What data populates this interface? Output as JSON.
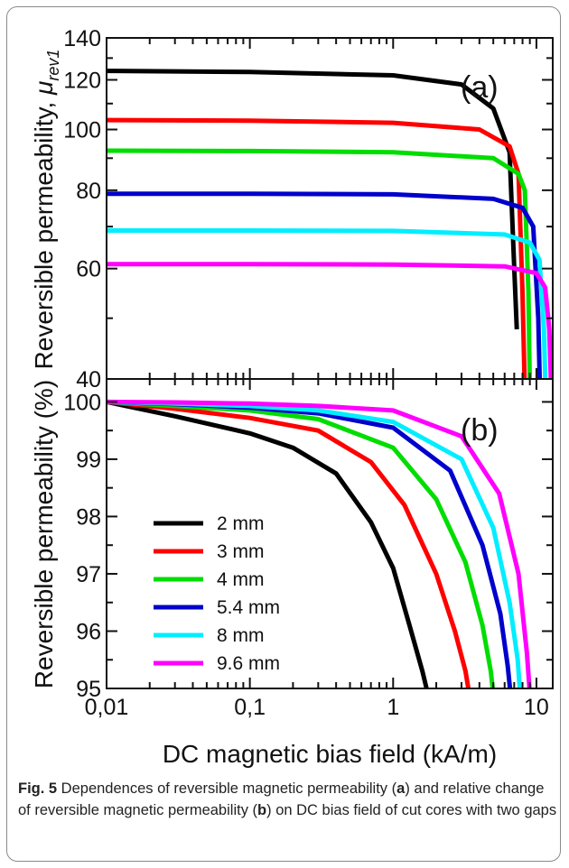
{
  "caption": {
    "label": "Fig. 5",
    "text_parts": [
      " Dependences of reversible magnetic permeability (",
      "a",
      ") and relative change of reversible magnetic permeability (",
      "b",
      ") on DC bias field of cut cores with two gaps"
    ]
  },
  "chart_data": [
    {
      "type": "line",
      "panel": "(a)",
      "ylabel_main": "Reversible permeability, ",
      "ylabel_symbol": "μ",
      "ylabel_sub": "rev1",
      "xscale": "log",
      "yscale": "log",
      "xlim": [
        0.01,
        13
      ],
      "ylim": [
        40,
        140
      ],
      "yticks": [
        "40",
        "60",
        "80",
        "100",
        "120",
        "140"
      ],
      "series": [
        {
          "name": "2 mm",
          "color": "#000000",
          "x": [
            0.01,
            0.1,
            1,
            3,
            5,
            6.5,
            7,
            7.3
          ],
          "y": [
            124,
            123.5,
            122,
            118,
            108,
            92,
            60,
            48
          ]
        },
        {
          "name": "3 mm",
          "color": "#ff0000",
          "x": [
            0.01,
            0.1,
            1,
            4,
            6.5,
            7.5,
            8,
            8.3
          ],
          "y": [
            103.5,
            103.3,
            102.5,
            100,
            94,
            85,
            55,
            38
          ]
        },
        {
          "name": "4 mm",
          "color": "#00dd00",
          "x": [
            0.01,
            0.1,
            1,
            5,
            7.5,
            8.3,
            8.8,
            9.0
          ],
          "y": [
            92.5,
            92.4,
            92,
            90,
            85,
            80,
            55,
            38
          ]
        },
        {
          "name": "5.4 mm",
          "color": "#0000cc",
          "x": [
            0.01,
            0.1,
            1,
            5,
            8,
            9.5,
            10.3,
            10.6
          ],
          "y": [
            79,
            79,
            78.8,
            77.5,
            75,
            70,
            50,
            38
          ]
        },
        {
          "name": "8 mm",
          "color": "#00eeff",
          "x": [
            0.01,
            0.1,
            1,
            6,
            9,
            10.5,
            11.3,
            11.6
          ],
          "y": [
            69,
            69,
            68.9,
            68,
            66,
            62,
            48,
            38
          ]
        },
        {
          "name": "9.6 mm",
          "color": "#ff00ff",
          "x": [
            0.01,
            0.1,
            1,
            6,
            10,
            11.5,
            12.3,
            12.7
          ],
          "y": [
            61,
            61,
            60.9,
            60.5,
            59,
            56,
            48,
            38
          ]
        }
      ]
    },
    {
      "type": "line",
      "panel": "(b)",
      "xlabel": "DC magnetic bias field (kA/m)",
      "ylabel": "Reversible permeability (%)",
      "xscale": "log",
      "xlim": [
        0.01,
        13
      ],
      "ylim": [
        95,
        100.4
      ],
      "xticks": [
        "0,01",
        "0,1",
        "1",
        "10"
      ],
      "yticks": [
        "95",
        "96",
        "97",
        "98",
        "99",
        "100"
      ],
      "legend_position": "lower-left",
      "series": [
        {
          "name": "2 mm",
          "color": "#000000",
          "x": [
            0.01,
            0.03,
            0.1,
            0.2,
            0.4,
            0.7,
            1.0,
            1.3,
            1.6,
            1.75
          ],
          "y": [
            100,
            99.75,
            99.45,
            99.2,
            98.75,
            97.9,
            97.1,
            96.1,
            95.3,
            94.9
          ]
        },
        {
          "name": "3 mm",
          "color": "#ff0000",
          "x": [
            0.01,
            0.03,
            0.1,
            0.3,
            0.7,
            1.2,
            2.0,
            2.7,
            3.2,
            3.4
          ],
          "y": [
            100,
            99.88,
            99.72,
            99.5,
            98.95,
            98.2,
            97.0,
            96.0,
            95.3,
            94.9
          ]
        },
        {
          "name": "4 mm",
          "color": "#00dd00",
          "x": [
            0.01,
            0.03,
            0.1,
            0.3,
            1.0,
            2.0,
            3.2,
            4.2,
            4.8,
            5.0
          ],
          "y": [
            100,
            99.93,
            99.85,
            99.7,
            99.2,
            98.3,
            97.2,
            96.1,
            95.3,
            94.9
          ]
        },
        {
          "name": "5.4 mm",
          "color": "#0000cc",
          "x": [
            0.01,
            0.03,
            0.1,
            0.3,
            1.0,
            2.5,
            4.2,
            5.6,
            6.3,
            6.6
          ],
          "y": [
            100,
            99.96,
            99.9,
            99.8,
            99.55,
            98.8,
            97.5,
            96.3,
            95.4,
            94.9
          ]
        },
        {
          "name": "8 mm",
          "color": "#00eeff",
          "x": [
            0.01,
            0.03,
            0.1,
            0.3,
            1.0,
            3.0,
            5.0,
            6.5,
            7.4,
            7.7
          ],
          "y": [
            100,
            99.97,
            99.93,
            99.85,
            99.65,
            99.0,
            97.8,
            96.5,
            95.5,
            94.9
          ]
        },
        {
          "name": "9.6 mm",
          "color": "#ff00ff",
          "x": [
            0.01,
            0.03,
            0.1,
            0.3,
            1.0,
            3.0,
            5.5,
            7.5,
            8.6,
            9.0
          ],
          "y": [
            100,
            99.99,
            99.97,
            99.93,
            99.85,
            99.4,
            98.4,
            97.0,
            95.6,
            94.9
          ]
        }
      ]
    }
  ]
}
